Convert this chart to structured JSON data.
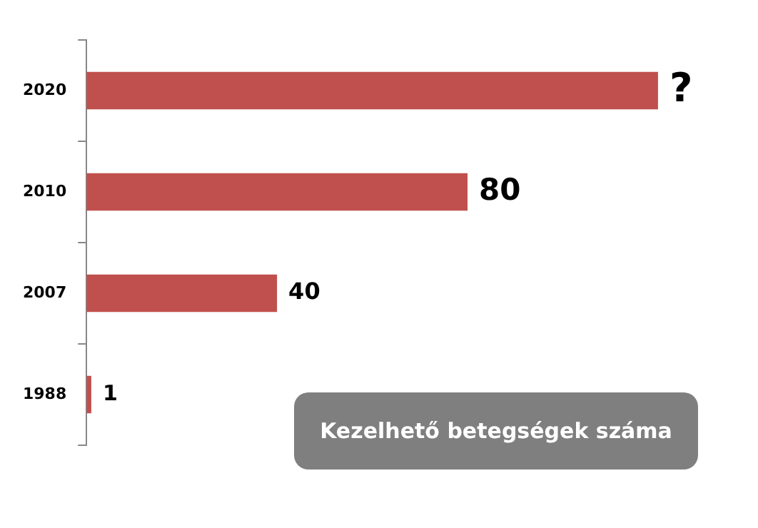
{
  "chart_data": {
    "type": "bar",
    "orientation": "horizontal",
    "categories": [
      "2020",
      "2010",
      "2007",
      "1988"
    ],
    "values": [
      120,
      80,
      40,
      1
    ],
    "value_labels": [
      "?",
      "80",
      "40",
      "1"
    ],
    "color": "#c0504d",
    "grid": false,
    "legend": false,
    "tick_labels": "y",
    "annotations": [
      "Kezelhető betegségek száma"
    ]
  }
}
